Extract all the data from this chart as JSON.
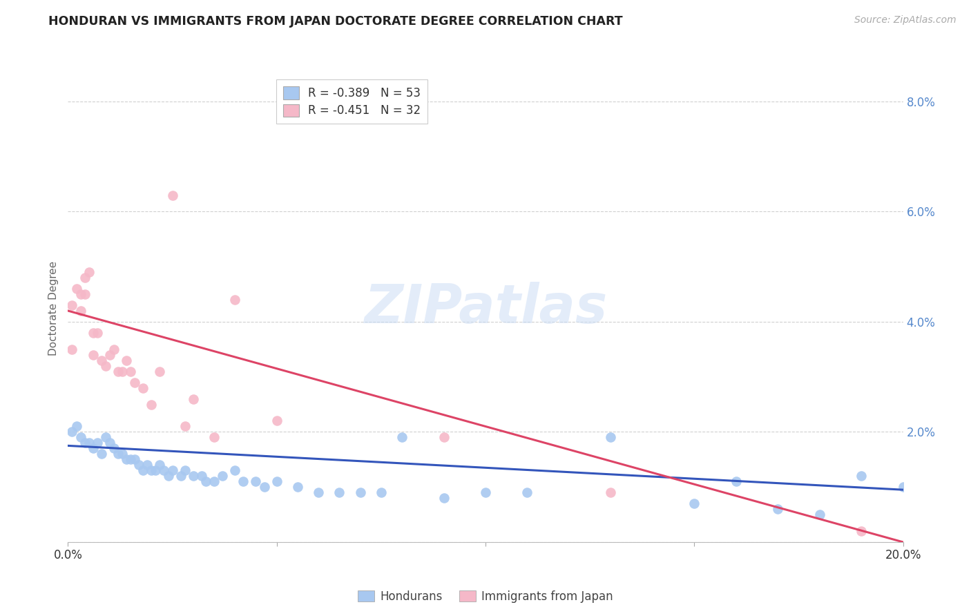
{
  "title": "HONDURAN VS IMMIGRANTS FROM JAPAN DOCTORATE DEGREE CORRELATION CHART",
  "source": "Source: ZipAtlas.com",
  "ylabel": "Doctorate Degree",
  "xlim": [
    0.0,
    0.2
  ],
  "ylim": [
    0.0,
    0.085
  ],
  "y_ticks_right": [
    0.0,
    0.02,
    0.04,
    0.06,
    0.08
  ],
  "y_tick_labels_right": [
    "",
    "2.0%",
    "4.0%",
    "6.0%",
    "8.0%"
  ],
  "background_color": "#ffffff",
  "grid_color": "#d0d0d0",
  "watermark": "ZIPatlas",
  "legend_blue": "R = -0.389   N = 53",
  "legend_pink": "R = -0.451   N = 32",
  "blue_color": "#a8c8f0",
  "pink_color": "#f5b8c8",
  "trendline_blue_color": "#3355bb",
  "trendline_pink_color": "#dd4466",
  "blue_trend_x": [
    0.0,
    0.2
  ],
  "blue_trend_y": [
    0.0175,
    0.0095
  ],
  "pink_trend_x": [
    0.0,
    0.2
  ],
  "pink_trend_y": [
    0.042,
    0.0
  ],
  "hondurans_x": [
    0.001,
    0.002,
    0.003,
    0.004,
    0.005,
    0.006,
    0.007,
    0.008,
    0.009,
    0.01,
    0.011,
    0.012,
    0.013,
    0.014,
    0.015,
    0.016,
    0.017,
    0.018,
    0.019,
    0.02,
    0.021,
    0.022,
    0.023,
    0.024,
    0.025,
    0.027,
    0.028,
    0.03,
    0.032,
    0.033,
    0.035,
    0.037,
    0.04,
    0.042,
    0.045,
    0.047,
    0.05,
    0.055,
    0.06,
    0.065,
    0.07,
    0.075,
    0.08,
    0.09,
    0.1,
    0.11,
    0.13,
    0.15,
    0.16,
    0.17,
    0.18,
    0.19,
    0.2
  ],
  "hondurans_y": [
    0.02,
    0.021,
    0.019,
    0.018,
    0.018,
    0.017,
    0.018,
    0.016,
    0.019,
    0.018,
    0.017,
    0.016,
    0.016,
    0.015,
    0.015,
    0.015,
    0.014,
    0.013,
    0.014,
    0.013,
    0.013,
    0.014,
    0.013,
    0.012,
    0.013,
    0.012,
    0.013,
    0.012,
    0.012,
    0.011,
    0.011,
    0.012,
    0.013,
    0.011,
    0.011,
    0.01,
    0.011,
    0.01,
    0.009,
    0.009,
    0.009,
    0.009,
    0.019,
    0.008,
    0.009,
    0.009,
    0.019,
    0.007,
    0.011,
    0.006,
    0.005,
    0.012,
    0.01
  ],
  "japan_x": [
    0.001,
    0.001,
    0.002,
    0.003,
    0.003,
    0.004,
    0.004,
    0.005,
    0.006,
    0.006,
    0.007,
    0.008,
    0.009,
    0.01,
    0.011,
    0.012,
    0.013,
    0.014,
    0.015,
    0.016,
    0.018,
    0.02,
    0.022,
    0.025,
    0.028,
    0.03,
    0.035,
    0.04,
    0.05,
    0.09,
    0.13,
    0.19
  ],
  "japan_y": [
    0.035,
    0.043,
    0.046,
    0.045,
    0.042,
    0.045,
    0.048,
    0.049,
    0.038,
    0.034,
    0.038,
    0.033,
    0.032,
    0.034,
    0.035,
    0.031,
    0.031,
    0.033,
    0.031,
    0.029,
    0.028,
    0.025,
    0.031,
    0.063,
    0.021,
    0.026,
    0.019,
    0.044,
    0.022,
    0.019,
    0.009,
    0.002
  ]
}
